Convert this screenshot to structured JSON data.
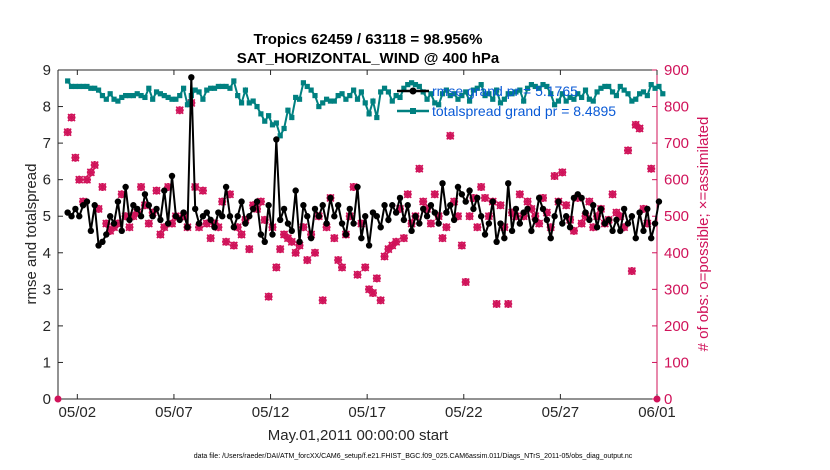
{
  "chart_data": {
    "type": "line",
    "title_line1": "Tropics 62459 / 63118 = 98.956%",
    "title_line2": "SAT_HORIZONTAL_WIND @ 400 hPa",
    "xlabel": "May.01,2011 00:00:00 start",
    "ylabel_left": "rmse and totalspread",
    "ylabel_right": "# of obs: o=possible; ×=assimilated",
    "xlim": [
      0.5,
      31.5
    ],
    "ylim_left": [
      0,
      9
    ],
    "ylim_right": [
      0,
      900
    ],
    "x_ticks": [
      {
        "value": 1.5,
        "label": "05/02"
      },
      {
        "value": 6.5,
        "label": "05/07"
      },
      {
        "value": 11.5,
        "label": "05/12"
      },
      {
        "value": 16.5,
        "label": "05/17"
      },
      {
        "value": 21.5,
        "label": "05/22"
      },
      {
        "value": 26.5,
        "label": "05/27"
      },
      {
        "value": 31.5,
        "label": "06/01"
      }
    ],
    "y_ticks_left": [
      "0",
      "1",
      "2",
      "3",
      "4",
      "5",
      "6",
      "7",
      "8",
      "9"
    ],
    "y_ticks_right": [
      "0",
      "100",
      "200",
      "300",
      "400",
      "500",
      "600",
      "700",
      "800",
      "900"
    ],
    "legend": [
      {
        "label": "rmse grand pr = 5.1765",
        "color": "#000000"
      },
      {
        "label": "totalspread grand pr = 8.4895",
        "color": "#008080"
      }
    ],
    "series": [
      {
        "name": "rmse",
        "color": "#000000",
        "values": [
          5.1,
          5.0,
          5.2,
          5.0,
          5.3,
          5.4,
          4.6,
          5.3,
          4.2,
          4.3,
          4.5,
          5.0,
          4.8,
          5.4,
          4.6,
          5.8,
          4.9,
          5.3,
          5.2,
          5.0,
          5.6,
          5.3,
          5.0,
          5.2,
          4.9,
          5.7,
          4.8,
          6.1,
          5.0,
          4.9,
          5.1,
          4.7,
          8.8,
          5.2,
          4.8,
          5.0,
          5.1,
          4.9,
          4.7,
          5.1,
          5.0,
          5.8,
          5.0,
          4.7,
          5.0,
          5.4,
          4.8,
          5.0,
          5.2,
          5.4,
          4.5,
          4.3,
          5.3,
          4.5,
          7.1,
          4.9,
          5.2,
          4.8,
          4.6,
          5.7,
          4.3,
          5.3,
          5.0,
          4.4,
          5.2,
          5.0,
          5.3,
          4.8,
          5.5,
          5.0,
          5.3,
          4.8,
          4.5,
          5.2,
          4.8,
          5.8,
          4.4,
          5.0,
          4.2,
          5.1,
          5.0,
          4.7,
          5.3,
          4.9,
          5.3,
          5.1,
          5.5,
          4.9,
          5.3,
          4.6,
          5.0,
          4.8,
          5.2,
          5.0,
          5.3,
          5.1,
          4.8,
          5.9,
          5.1,
          5.3,
          4.9,
          5.8,
          5.6,
          5.4,
          5.7,
          5.2,
          5.5,
          5.0,
          4.5,
          4.8,
          5.4,
          4.3,
          4.8,
          4.4,
          5.9,
          4.6,
          5.2,
          4.8,
          5.1,
          5.2,
          4.6,
          4.9,
          5.5,
          5.2,
          4.9,
          4.4,
          5.0,
          5.4,
          4.8,
          5.0,
          4.7,
          5.5,
          5.6,
          5.5,
          5.1,
          4.9,
          5.3,
          4.7,
          5.2,
          4.8,
          4.9,
          4.6,
          4.9,
          4.6,
          5.2,
          4.8,
          5.0,
          4.4,
          5.1,
          4.6,
          5.2,
          4.4,
          4.8,
          5.4
        ]
      },
      {
        "name": "totalspread",
        "color": "#008080",
        "values": [
          8.7,
          8.55,
          8.55,
          8.55,
          8.55,
          8.55,
          8.5,
          8.5,
          8.45,
          8.3,
          8.2,
          8.35,
          8.2,
          8.15,
          8.25,
          8.3,
          8.3,
          8.3,
          8.35,
          8.3,
          8.25,
          8.5,
          8.2,
          8.4,
          8.35,
          8.3,
          8.25,
          8.2,
          8.2,
          8.3,
          8.5,
          8.05,
          8.3,
          8.45,
          8.4,
          8.2,
          8.45,
          8.5,
          8.5,
          8.55,
          8.55,
          8.55,
          8.5,
          8.7,
          8.3,
          8.1,
          8.45,
          8.1,
          8.15,
          8.0,
          7.8,
          7.6,
          7.75,
          7.5,
          7.55,
          7.2,
          7.4,
          7.9,
          7.7,
          8.25,
          8.2,
          8.65,
          8.55,
          8.45,
          8.3,
          8.0,
          8.1,
          8.2,
          8.15,
          8.15,
          8.3,
          8.35,
          8.2,
          8.3,
          8.45,
          8.2,
          8.4,
          8.1,
          7.8,
          8.15,
          7.7,
          8.4,
          8.5,
          8.4,
          8.15,
          8.3,
          8.25,
          8.5,
          8.6,
          8.65,
          8.6,
          8.55,
          8.4,
          8.2,
          8.35,
          8.1,
          8.05,
          8.35,
          8.45,
          8.3,
          8.35,
          8.2,
          8.3,
          8.4,
          8.15,
          8.45,
          8.5,
          8.6,
          8.3,
          8.35,
          8.2,
          8.45,
          8.1,
          8.2,
          8.35,
          8.35,
          8.4,
          8.45,
          8.15,
          8.5,
          8.6,
          8.55,
          8.5,
          8.6,
          8.55,
          8.35,
          8.05,
          8.15,
          8.35,
          8.15,
          8.25,
          8.2,
          8.35,
          8.25,
          8.45,
          8.2,
          8.15,
          8.4,
          8.5,
          8.55,
          8.55,
          8.4,
          8.3,
          8.55,
          8.45,
          8.35,
          8.15,
          8.2,
          8.35,
          8.4,
          8.3,
          8.6,
          8.5,
          8.55,
          8.35
        ]
      },
      {
        "name": "obs_count",
        "color": "#d0135a",
        "axis": "right",
        "values": [
          730,
          770,
          660,
          600,
          540,
          600,
          620,
          640,
          520,
          580,
          480,
          460,
          470,
          480,
          560,
          500,
          470,
          500,
          510,
          580,
          530,
          480,
          510,
          570,
          450,
          470,
          580,
          480,
          500,
          790,
          500,
          470,
          810,
          580,
          470,
          570,
          480,
          440,
          480,
          470,
          540,
          430,
          560,
          420,
          470,
          450,
          490,
          410,
          530,
          520,
          540,
          490,
          280,
          470,
          360,
          410,
          450,
          440,
          430,
          400,
          420,
          470,
          380,
          450,
          400,
          500,
          270,
          470,
          550,
          440,
          380,
          360,
          450,
          500,
          580,
          340,
          480,
          360,
          300,
          290,
          330,
          270,
          390,
          410,
          420,
          430,
          520,
          440,
          560,
          480,
          500,
          630,
          540,
          520,
          480,
          560,
          500,
          440,
          470,
          720,
          540,
          500,
          420,
          320,
          500,
          550,
          470,
          580,
          550,
          500,
          540,
          260,
          530,
          470,
          260,
          510,
          500,
          560,
          500,
          540,
          520,
          500,
          480,
          550,
          510,
          470,
          610,
          540,
          620,
          530,
          490,
          460,
          550,
          480,
          500,
          540,
          470,
          500,
          520,
          480,
          490,
          560,
          510,
          500,
          470,
          680,
          350,
          750,
          740,
          520,
          480,
          630
        ]
      }
    ]
  },
  "footer": "data file: /Users/raeder/DAI/ATM_forcXX/CAM6_setup/f.e21.FHIST_BGC.f09_025.CAM6assim.011/Diags_NTrS_2011-05/obs_diag_output.nc"
}
